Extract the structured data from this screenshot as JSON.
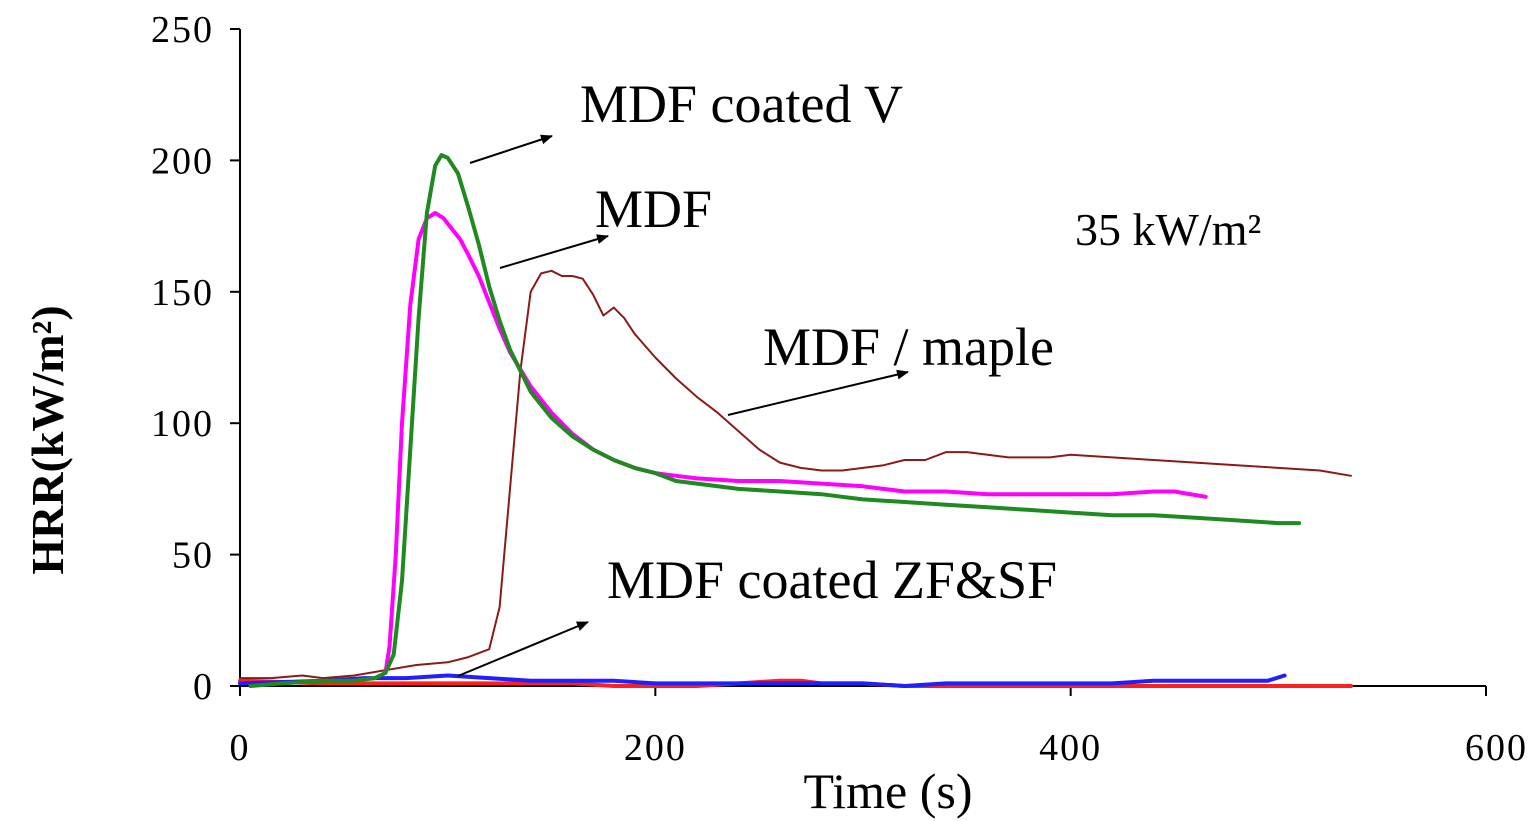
{
  "chart_data": {
    "type": "line",
    "title": "",
    "xlabel": "Time (s)",
    "ylabel": "HRR(kW/m²)",
    "xlim": [
      0,
      600
    ],
    "ylim": [
      0,
      250
    ],
    "x_ticks": [
      0,
      200,
      400,
      600
    ],
    "y_ticks": [
      0,
      50,
      100,
      150,
      200,
      250
    ],
    "grid": false,
    "legend": "none",
    "condition_label": "35 kW/m²",
    "series": [
      {
        "name": "MDF coated V",
        "color": "#1f8a1f",
        "points": [
          [
            5,
            0
          ],
          [
            20,
            1
          ],
          [
            40,
            2
          ],
          [
            55,
            2
          ],
          [
            65,
            3
          ],
          [
            70,
            5
          ],
          [
            74,
            12
          ],
          [
            78,
            40
          ],
          [
            82,
            90
          ],
          [
            86,
            140
          ],
          [
            90,
            180
          ],
          [
            94,
            198
          ],
          [
            97,
            202
          ],
          [
            100,
            201
          ],
          [
            105,
            195
          ],
          [
            110,
            182
          ],
          [
            115,
            168
          ],
          [
            120,
            152
          ],
          [
            125,
            139
          ],
          [
            130,
            128
          ],
          [
            140,
            112
          ],
          [
            150,
            102
          ],
          [
            160,
            95
          ],
          [
            170,
            90
          ],
          [
            180,
            86
          ],
          [
            190,
            83
          ],
          [
            200,
            81
          ],
          [
            210,
            78
          ],
          [
            220,
            77
          ],
          [
            240,
            75
          ],
          [
            260,
            74
          ],
          [
            280,
            73
          ],
          [
            290,
            72
          ],
          [
            300,
            71
          ],
          [
            320,
            70
          ],
          [
            340,
            69
          ],
          [
            360,
            68
          ],
          [
            380,
            67
          ],
          [
            400,
            66
          ],
          [
            420,
            65
          ],
          [
            440,
            65
          ],
          [
            460,
            64
          ],
          [
            480,
            63
          ],
          [
            500,
            62
          ],
          [
            510,
            62
          ]
        ]
      },
      {
        "name": "MDF",
        "color": "#ff00ff",
        "points": [
          [
            70,
            5
          ],
          [
            72,
            15
          ],
          [
            75,
            50
          ],
          [
            78,
            100
          ],
          [
            82,
            145
          ],
          [
            86,
            170
          ],
          [
            90,
            178
          ],
          [
            94,
            180
          ],
          [
            98,
            178
          ],
          [
            102,
            174
          ],
          [
            106,
            170
          ],
          [
            110,
            164
          ],
          [
            115,
            156
          ],
          [
            120,
            146
          ],
          [
            125,
            136
          ],
          [
            130,
            127
          ],
          [
            140,
            114
          ],
          [
            150,
            104
          ],
          [
            160,
            96
          ],
          [
            170,
            90
          ],
          [
            180,
            86
          ],
          [
            190,
            83
          ],
          [
            200,
            81
          ],
          [
            210,
            80
          ],
          [
            220,
            79
          ],
          [
            240,
            78
          ],
          [
            260,
            78
          ],
          [
            280,
            77
          ],
          [
            300,
            76
          ],
          [
            320,
            74
          ],
          [
            340,
            74
          ],
          [
            360,
            73
          ],
          [
            380,
            73
          ],
          [
            400,
            73
          ],
          [
            420,
            73
          ],
          [
            440,
            74
          ],
          [
            450,
            74
          ],
          [
            465,
            72
          ]
        ]
      },
      {
        "name": "MDF / maple",
        "color": "#8b1a1a",
        "points": [
          [
            0,
            3
          ],
          [
            15,
            3
          ],
          [
            30,
            4
          ],
          [
            40,
            3
          ],
          [
            55,
            4
          ],
          [
            70,
            6
          ],
          [
            85,
            8
          ],
          [
            100,
            9
          ],
          [
            110,
            11
          ],
          [
            120,
            14
          ],
          [
            125,
            30
          ],
          [
            130,
            75
          ],
          [
            135,
            120
          ],
          [
            140,
            150
          ],
          [
            145,
            157
          ],
          [
            150,
            158
          ],
          [
            155,
            156
          ],
          [
            160,
            156
          ],
          [
            165,
            155
          ],
          [
            170,
            149
          ],
          [
            175,
            141
          ],
          [
            180,
            144
          ],
          [
            185,
            140
          ],
          [
            190,
            134
          ],
          [
            200,
            125
          ],
          [
            210,
            117
          ],
          [
            220,
            110
          ],
          [
            230,
            104
          ],
          [
            240,
            97
          ],
          [
            250,
            90
          ],
          [
            260,
            85
          ],
          [
            270,
            83
          ],
          [
            280,
            82
          ],
          [
            290,
            82
          ],
          [
            300,
            83
          ],
          [
            310,
            84
          ],
          [
            320,
            86
          ],
          [
            330,
            86
          ],
          [
            340,
            89
          ],
          [
            350,
            89
          ],
          [
            360,
            88
          ],
          [
            370,
            87
          ],
          [
            380,
            87
          ],
          [
            390,
            87
          ],
          [
            400,
            88
          ],
          [
            420,
            87
          ],
          [
            440,
            86
          ],
          [
            460,
            85
          ],
          [
            480,
            84
          ],
          [
            500,
            83
          ],
          [
            520,
            82
          ],
          [
            535,
            80
          ]
        ]
      },
      {
        "name": "MDF coated ZF&SF",
        "color": "#1f1fff",
        "points": [
          [
            0,
            1
          ],
          [
            40,
            2
          ],
          [
            60,
            3
          ],
          [
            80,
            3
          ],
          [
            100,
            4
          ],
          [
            120,
            3
          ],
          [
            140,
            2
          ],
          [
            160,
            2
          ],
          [
            180,
            2
          ],
          [
            200,
            1
          ],
          [
            220,
            1
          ],
          [
            240,
            1
          ],
          [
            260,
            1
          ],
          [
            280,
            1
          ],
          [
            300,
            1
          ],
          [
            320,
            0
          ],
          [
            340,
            1
          ],
          [
            360,
            1
          ],
          [
            380,
            1
          ],
          [
            400,
            1
          ],
          [
            420,
            1
          ],
          [
            440,
            2
          ],
          [
            460,
            2
          ],
          [
            480,
            2
          ],
          [
            495,
            2
          ],
          [
            503,
            4
          ]
        ]
      },
      {
        "name": "MDF coated ZF&SF",
        "color": "#ff1f1f",
        "points": [
          [
            0,
            2
          ],
          [
            40,
            1
          ],
          [
            80,
            1
          ],
          [
            120,
            1
          ],
          [
            160,
            1
          ],
          [
            180,
            0
          ],
          [
            200,
            0
          ],
          [
            220,
            0
          ],
          [
            240,
            1
          ],
          [
            260,
            2
          ],
          [
            270,
            2
          ],
          [
            280,
            1
          ],
          [
            300,
            1
          ],
          [
            320,
            0
          ],
          [
            340,
            0
          ],
          [
            360,
            0
          ],
          [
            400,
            0
          ],
          [
            440,
            0
          ],
          [
            480,
            0
          ],
          [
            520,
            0
          ],
          [
            535,
            0
          ]
        ]
      }
    ],
    "annotations": [
      {
        "text": "MDF coated V"
      },
      {
        "text": "MDF"
      },
      {
        "text": "MDF / maple"
      },
      {
        "text": "MDF coated ZF&SF"
      }
    ]
  }
}
